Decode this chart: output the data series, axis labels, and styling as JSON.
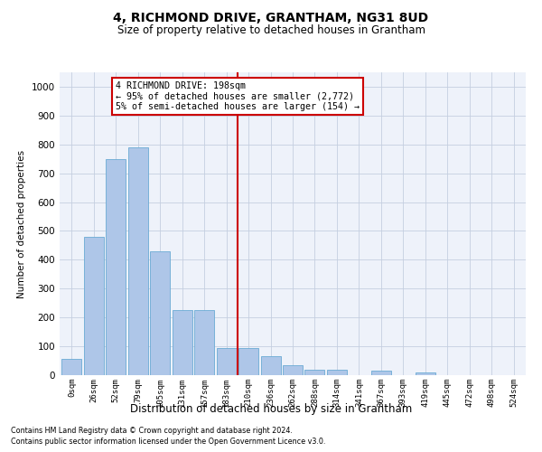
{
  "title1": "4, RICHMOND DRIVE, GRANTHAM, NG31 8UD",
  "title2": "Size of property relative to detached houses in Grantham",
  "xlabel": "Distribution of detached houses by size in Grantham",
  "ylabel": "Number of detached properties",
  "bar_labels": [
    "0sqm",
    "26sqm",
    "52sqm",
    "79sqm",
    "105sqm",
    "131sqm",
    "157sqm",
    "183sqm",
    "210sqm",
    "236sqm",
    "262sqm",
    "288sqm",
    "314sqm",
    "341sqm",
    "367sqm",
    "393sqm",
    "419sqm",
    "445sqm",
    "472sqm",
    "498sqm",
    "524sqm"
  ],
  "bar_values": [
    55,
    480,
    750,
    790,
    430,
    225,
    225,
    95,
    95,
    65,
    35,
    20,
    20,
    0,
    15,
    0,
    10,
    0,
    0,
    0,
    0
  ],
  "bar_color": "#aec6e8",
  "bar_edgecolor": "#6aaad4",
  "background_color": "#eef2fa",
  "grid_color": "#c5cfe0",
  "vline_x": 8.0,
  "vline_color": "#cc0000",
  "annotation_text": "4 RICHMOND DRIVE: 198sqm\n← 95% of detached houses are smaller (2,772)\n5% of semi-detached houses are larger (154) →",
  "annotation_box_color": "#cc0000",
  "ylim": [
    0,
    1050
  ],
  "yticks": [
    0,
    100,
    200,
    300,
    400,
    500,
    600,
    700,
    800,
    900,
    1000
  ],
  "footnote1": "Contains HM Land Registry data © Crown copyright and database right 2024.",
  "footnote2": "Contains public sector information licensed under the Open Government Licence v3.0."
}
